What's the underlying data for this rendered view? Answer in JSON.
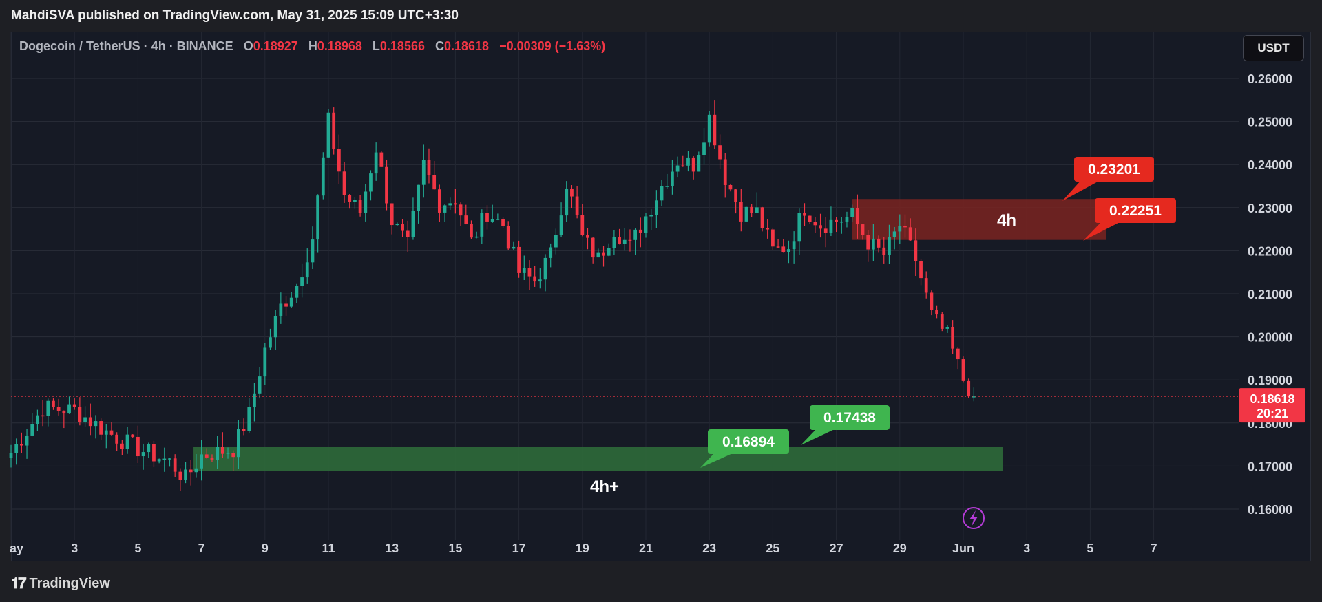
{
  "publisher": "MahdiSVA published on TradingView.com, May 31, 2025 15:09 UTC+3:30",
  "header": {
    "symbol": "Dogecoin / TetherUS · 4h · BINANCE",
    "o_label": "O",
    "o_value": "0.18927",
    "h_label": "H",
    "h_value": "0.18968",
    "l_label": "L",
    "l_value": "0.18566",
    "c_label": "C",
    "c_value": "0.18618",
    "change": "−0.00309 (−1.63%)"
  },
  "currency_button": "USDT",
  "footer_brand": "TradingView",
  "colors": {
    "up": "#22ab94",
    "down": "#f23645",
    "resistance_zone": "#7a2421",
    "support_zone": "#2d6a3a",
    "label_red": "#e5291f",
    "label_green": "#3fb54f",
    "price_tag": "#f23645"
  },
  "chart_data": {
    "type": "candlestick",
    "ylim": [
      0.155,
      0.265
    ],
    "yticks": [
      "0.26000",
      "0.25000",
      "0.24000",
      "0.23000",
      "0.22000",
      "0.21000",
      "0.20000",
      "0.19000",
      "0.18000",
      "0.17000",
      "0.16000"
    ],
    "xticks": [
      "ay",
      "3",
      "5",
      "7",
      "9",
      "11",
      "13",
      "15",
      "17",
      "19",
      "21",
      "23",
      "25",
      "27",
      "29",
      "Jun",
      "3",
      "5",
      "7"
    ],
    "last_price": "0.18618",
    "countdown": "20:21",
    "close_path": [
      [
        "May 1",
        0.173
      ],
      [
        "May 2",
        0.1835
      ],
      [
        "May 3",
        0.183
      ],
      [
        "May 4",
        0.178
      ],
      [
        "May 5",
        0.174
      ],
      [
        "May 6",
        0.171
      ],
      [
        "May 6 12h",
        0.167
      ],
      [
        "May 7",
        0.1725
      ],
      [
        "May 8",
        0.174
      ],
      [
        "May 8 12h",
        0.182
      ],
      [
        "May 9",
        0.197
      ],
      [
        "May 9 12h",
        0.207
      ],
      [
        "May 10",
        0.212
      ],
      [
        "May 10 12h",
        0.223
      ],
      [
        "May 11",
        0.25
      ],
      [
        "May 11 12h",
        0.233
      ],
      [
        "May 12",
        0.229
      ],
      [
        "May 12 12h",
        0.244
      ],
      [
        "May 13",
        0.227
      ],
      [
        "May 13 12h",
        0.221
      ],
      [
        "May 14",
        0.24
      ],
      [
        "May 14 12h",
        0.231
      ],
      [
        "May 15",
        0.232
      ],
      [
        "May 15 12h",
        0.222
      ],
      [
        "May 16",
        0.229
      ],
      [
        "May 16 12h",
        0.226
      ],
      [
        "May 17",
        0.215
      ],
      [
        "May 17 12h",
        0.213
      ],
      [
        "May 18",
        0.219
      ],
      [
        "May 18 12h",
        0.236
      ],
      [
        "May 19",
        0.223
      ],
      [
        "May 19 12h",
        0.218
      ],
      [
        "May 20",
        0.225
      ],
      [
        "May 20 12h",
        0.221
      ],
      [
        "May 21",
        0.228
      ],
      [
        "May 21 12h",
        0.235
      ],
      [
        "May 22",
        0.241
      ],
      [
        "May 22 12h",
        0.24
      ],
      [
        "May 23",
        0.251
      ],
      [
        "May 23 12h",
        0.237
      ],
      [
        "May 24",
        0.229
      ],
      [
        "May 24 12h",
        0.229
      ],
      [
        "May 25",
        0.22
      ],
      [
        "May 25 12h",
        0.221
      ],
      [
        "May 26",
        0.23
      ],
      [
        "May 26 12h",
        0.226
      ],
      [
        "May 27",
        0.227
      ],
      [
        "May 27 12h",
        0.228
      ],
      [
        "May 28",
        0.222
      ],
      [
        "May 28 12h",
        0.219
      ],
      [
        "May 29",
        0.226
      ],
      [
        "May 29 12h",
        0.218
      ],
      [
        "May 30",
        0.205
      ],
      [
        "May 30 12h",
        0.2
      ],
      [
        "May 31",
        0.19
      ],
      [
        "May 31 8h",
        0.18618
      ]
    ],
    "zones": [
      {
        "name": "resistance",
        "label": "4h",
        "from": "May 27 12h",
        "to": "Jun 4 12h",
        "y_low": 0.22251,
        "y_high": 0.23201
      },
      {
        "name": "support",
        "label": "4h+",
        "from": "May 6 18h",
        "to": "Jun 1 6h",
        "y_low": 0.16894,
        "y_high": 0.17438
      }
    ],
    "price_labels": [
      {
        "text": "0.23201",
        "value": 0.23201,
        "color": "red"
      },
      {
        "text": "0.22251",
        "value": 0.22251,
        "color": "red"
      },
      {
        "text": "0.17438",
        "value": 0.17438,
        "color": "green"
      },
      {
        "text": "0.16894",
        "value": 0.16894,
        "color": "green"
      }
    ]
  }
}
